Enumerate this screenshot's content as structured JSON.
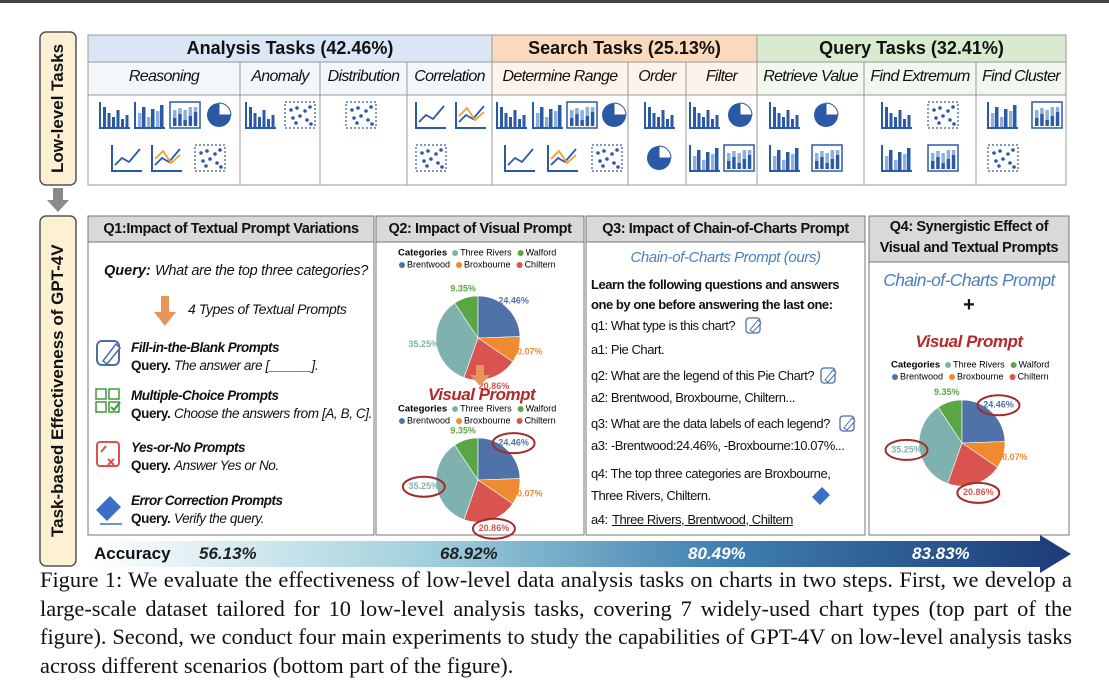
{
  "side_labels": {
    "top": "Low-level Tasks",
    "bottom": "Task-based Effectiveness of GPT-4V"
  },
  "task_groups": [
    {
      "title": "Analysis Tasks (42.46%)",
      "tasks": [
        "Reasoning",
        "Anomaly",
        "Distribution",
        "Correlation"
      ]
    },
    {
      "title": "Search Tasks (25.13%)",
      "tasks": [
        "Determine Range",
        "Order",
        "Filter"
      ]
    },
    {
      "title": "Query Tasks (32.41%)",
      "tasks": [
        "Retrieve Value",
        "Find Extremum",
        "Find Cluster"
      ]
    }
  ],
  "pie": {
    "legend_title": "Categories",
    "names": [
      "Three Rivers",
      "Walford",
      "Brentwood",
      "Broxbourne",
      "Chiltern"
    ],
    "colors": [
      "#7fb2ae",
      "#5aa646",
      "#4f72a8",
      "#f08a2e",
      "#d9534f"
    ],
    "values": [
      35.25,
      9.35,
      24.46,
      10.07,
      20.86
    ],
    "value_labels": [
      "35.25%",
      "9.35%",
      "24.46%",
      "10.07%",
      "20.86%"
    ]
  },
  "q1": {
    "title": "Q1:Impact of Textual Prompt Variations",
    "query_label": "Query:",
    "query": "What are the top three categories?",
    "subtitle": "4 Types of Textual Prompts",
    "prompts": [
      {
        "name": "Fill-in-the-Blank Prompts",
        "label": "Query.",
        "text": "The answer are [______]."
      },
      {
        "name": "Multiple-Choice Prompts",
        "label": "Query.",
        "text": "Choose the answers from [A, B, C]."
      },
      {
        "name": "Yes-or-No Prompts",
        "label": "Query.",
        "text": "Answer Yes or No."
      },
      {
        "name": "Error Correction Prompts",
        "label": "Query.",
        "text": "Verify the query."
      }
    ]
  },
  "q2": {
    "title": "Q2: Impact of Visual Prompt",
    "visual_label": "Visual Prompt"
  },
  "q3": {
    "title": "Q3: Impact of Chain-of-Charts Prompt",
    "subtitle": "Chain-of-Charts Prompt (ours)",
    "intro": [
      "Learn the following questions and answers",
      "one by one before answering the last one:"
    ],
    "lines": [
      "q1: What type is this chart?",
      "a1: Pie Chart.",
      "q2: What are the legend of this Pie Chart?",
      "a2: Brentwood, Broxbourne, Chiltern...",
      "q3: What are the data labels of each legend?",
      "a3: -Brentwood:24.46%, -Broxbourne:10.07%...",
      "q4: The top three categories are Broxbourne,",
      "Three Rivers, Chiltern."
    ],
    "final_label": "a4:",
    "final_answer": "Three Rivers, Brentwood, Chiltern"
  },
  "q4": {
    "title": [
      "Q4: Synergistic Effect of",
      "Visual and Textual Prompts"
    ],
    "chain_label": "Chain-of-Charts Prompt",
    "plus": "+",
    "visual_label": "Visual Prompt"
  },
  "accuracy": {
    "label": "Accuracy",
    "values": [
      "56.13%",
      "68.92%",
      "80.49%",
      "83.83%"
    ]
  },
  "caption": "Figure 1: We evaluate the effectiveness of low-level data analysis tasks on charts in two steps. First, we develop a large-scale dataset tailored for 10 low-level analysis tasks, covering 7 widely-used chart types (top part of the figure). Second, we conduct four main experiments to study the capabilities of GPT-4V on low-level analysis tasks across different scenarios (bottom part of the figure)."
}
